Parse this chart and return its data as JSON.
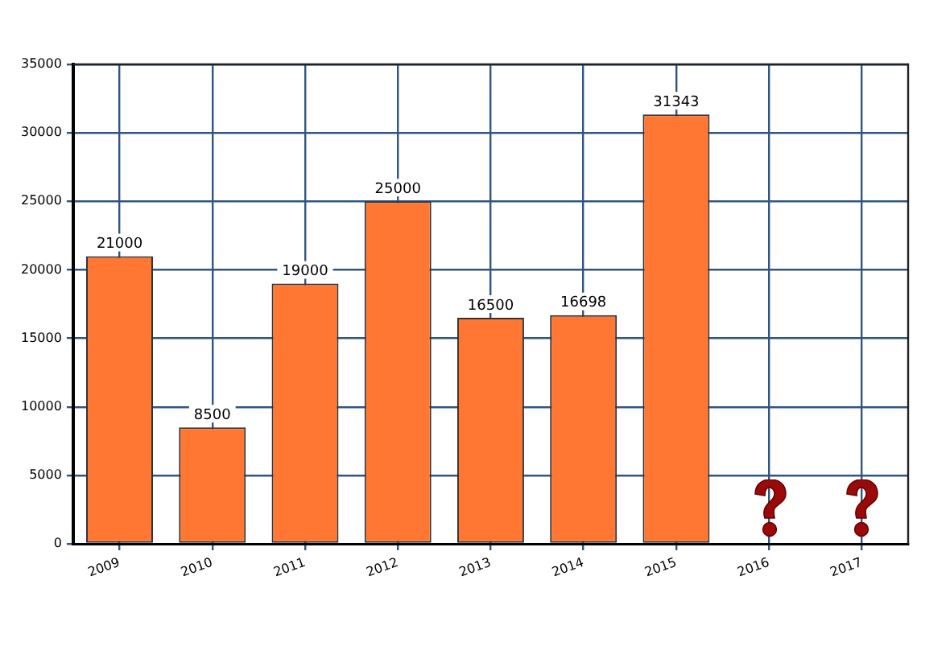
{
  "chart_data": {
    "type": "bar",
    "categories": [
      "2009",
      "2010",
      "2011",
      "2012",
      "2013",
      "2014",
      "2015",
      "2016",
      "2017"
    ],
    "values": [
      21000,
      8500,
      19000,
      25000,
      16500,
      16698,
      31343,
      null,
      null
    ],
    "color": "#ff7733",
    "ylim": [
      0,
      35000
    ],
    "yticks": [
      0,
      5000,
      10000,
      15000,
      20000,
      25000,
      30000,
      35000
    ],
    "grid": true,
    "data_labels": true
  }
}
